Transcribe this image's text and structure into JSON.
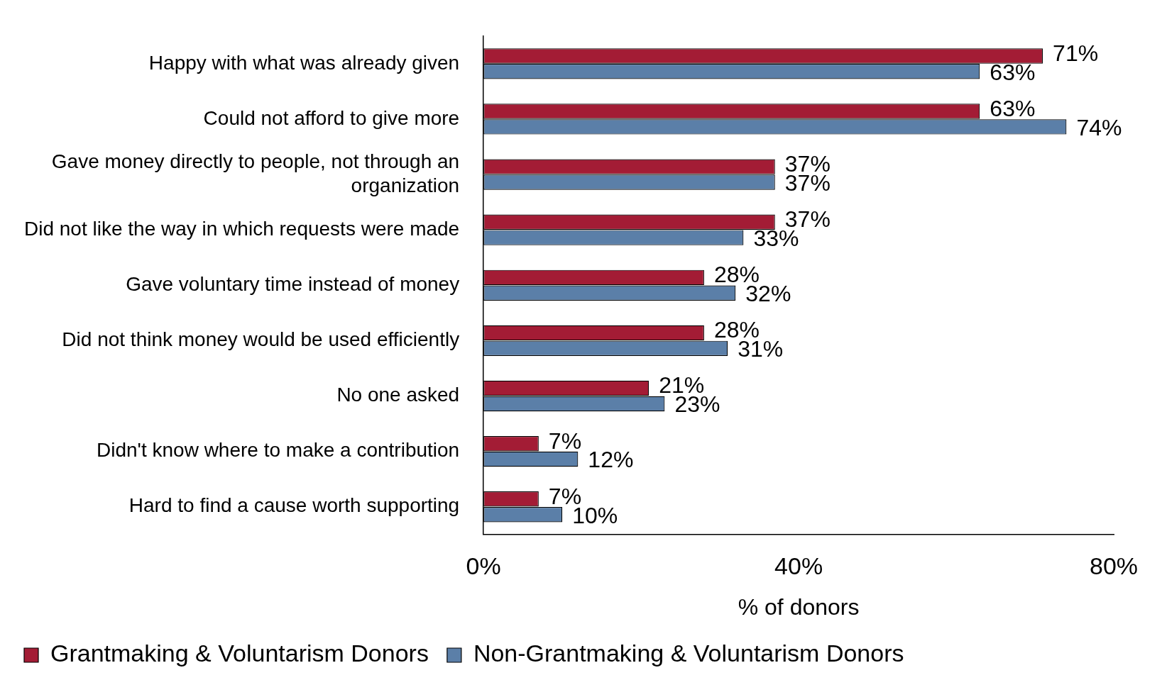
{
  "chart_data": {
    "type": "bar",
    "orientation": "horizontal",
    "xlabel": "% of donors",
    "categories": [
      "Happy with what was already given",
      "Could not afford to give more",
      "Gave money directly to people, not through an organization",
      "Did not like the way in which requests were made",
      "Gave voluntary time instead of money",
      "Did not think money would be used efficiently",
      "No one asked",
      "Didn't know where to make a contribution",
      "Hard to find a cause worth supporting"
    ],
    "series": [
      {
        "name": "Grantmaking & Voluntarism Donors",
        "color": "#a31c35",
        "values": [
          71,
          63,
          37,
          37,
          28,
          28,
          21,
          7,
          7
        ],
        "value_labels": [
          "71%",
          "63%",
          "37%",
          "37%",
          "28%",
          "28%",
          "21%",
          "7%",
          "7%"
        ]
      },
      {
        "name": "Non-Grantmaking & Voluntarism Donors",
        "color": "#5b7fa8",
        "values": [
          63,
          74,
          37,
          33,
          32,
          31,
          23,
          12,
          10
        ],
        "value_labels": [
          "63%",
          "74%",
          "37%",
          "33%",
          "32%",
          "31%",
          "23%",
          "12%",
          "10%"
        ]
      }
    ],
    "xlim": [
      0,
      80
    ],
    "xticks": [
      {
        "value": 0,
        "label": "0%"
      },
      {
        "value": 40,
        "label": "40%"
      },
      {
        "value": 80,
        "label": "80%"
      }
    ],
    "grid": false,
    "legend": "bottom"
  }
}
